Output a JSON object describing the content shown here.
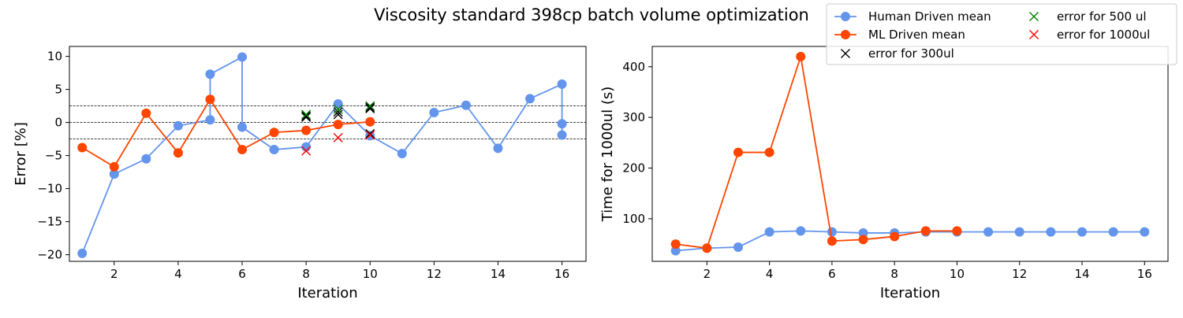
{
  "figure": {
    "title": "Viscosity standard 398cp batch volume optimization"
  },
  "legend": {
    "items": [
      {
        "label": "Human Driven mean",
        "kind": "line-marker",
        "color": "#6495ED"
      },
      {
        "label": "ML Driven mean",
        "kind": "line-marker",
        "color": "#FF4500"
      },
      {
        "label": "error for 300ul",
        "kind": "x-marker",
        "color": "#000000"
      },
      {
        "label": "error for 500 ul",
        "kind": "x-marker",
        "color": "#008000"
      },
      {
        "label": "error for 1000ul",
        "kind": "x-marker",
        "color": "#FF0000"
      }
    ]
  },
  "chart_data": [
    {
      "type": "line",
      "xlabel": "Iteration",
      "ylabel": "Error [%]",
      "xlim": [
        0.6,
        16.75
      ],
      "ylim": [
        -21.0,
        11.5
      ],
      "xticks": [
        2,
        4,
        6,
        8,
        10,
        12,
        14,
        16
      ],
      "yticks": [
        10,
        5,
        0,
        -5,
        -10,
        -15,
        -20
      ],
      "ytick_labels": [
        "10",
        "5",
        "0",
        "−5",
        "−10",
        "−15",
        "−20"
      ],
      "hlines": [
        {
          "y": 2.5,
          "style": "dashed",
          "color": "#000000"
        },
        {
          "y": 0,
          "style": "dashed",
          "color": "#000000"
        },
        {
          "y": -2.5,
          "style": "dashed",
          "color": "#000000"
        }
      ],
      "series": [
        {
          "name": "Human Driven mean",
          "color": "#6495ED",
          "marker": "circle",
          "x": [
            1,
            2,
            3,
            4,
            5,
            5,
            6,
            6,
            7,
            8,
            9,
            10,
            11,
            12,
            13,
            14,
            15,
            16,
            16,
            16
          ],
          "y": [
            -19.8,
            -7.8,
            -5.5,
            -0.5,
            0.4,
            7.3,
            9.9,
            -0.7,
            -4.1,
            -3.7,
            2.8,
            -2.0,
            -4.7,
            1.5,
            2.6,
            -3.9,
            3.6,
            5.8,
            -0.2,
            -1.9
          ]
        },
        {
          "name": "ML Driven mean",
          "color": "#FF4500",
          "marker": "circle",
          "x": [
            1,
            2,
            3,
            4,
            5,
            6,
            7,
            8,
            9,
            10
          ],
          "y": [
            -3.8,
            -6.7,
            1.4,
            -4.6,
            3.5,
            -4.1,
            -1.5,
            -1.2,
            -0.3,
            0.1
          ]
        },
        {
          "name": "error for 300ul",
          "color": "#000000",
          "marker": "x",
          "x": [
            8,
            8,
            9,
            9,
            10,
            10,
            10
          ],
          "y": [
            1.0,
            0.8,
            1.6,
            1.2,
            2.3,
            2.1,
            -1.7
          ]
        },
        {
          "name": "error for 500 ul",
          "color": "#008000",
          "marker": "x",
          "x": [
            8,
            9,
            10
          ],
          "y": [
            1.2,
            2.0,
            2.5
          ]
        },
        {
          "name": "error for 1000ul",
          "color": "#FF0000",
          "marker": "x",
          "x": [
            8,
            9,
            10
          ],
          "y": [
            -4.3,
            -2.3,
            -1.9
          ]
        }
      ]
    },
    {
      "type": "line",
      "xlabel": "Iteration",
      "ylabel": "Time for 1000ul (s)",
      "xlim": [
        0.25,
        16.75
      ],
      "ylim": [
        16,
        440
      ],
      "xticks": [
        2,
        4,
        6,
        8,
        10,
        12,
        14,
        16
      ],
      "yticks": [
        100,
        200,
        300,
        400
      ],
      "ytick_labels": [
        "100",
        "200",
        "300",
        "400"
      ],
      "hlines": [],
      "series": [
        {
          "name": "Human Driven mean",
          "color": "#6495ED",
          "marker": "circle",
          "x": [
            1,
            2,
            3,
            4,
            5,
            6,
            7,
            8,
            9,
            10,
            11,
            12,
            13,
            14,
            15,
            16
          ],
          "y": [
            37,
            42,
            44,
            74,
            76,
            74,
            72,
            72,
            74,
            74,
            74,
            74,
            74,
            74,
            74,
            74
          ]
        },
        {
          "name": "ML Driven mean",
          "color": "#FF4500",
          "marker": "circle",
          "x": [
            1,
            2,
            3,
            4,
            5,
            6,
            7,
            8,
            9,
            10
          ],
          "y": [
            50,
            42,
            231,
            231,
            420,
            56,
            59,
            65,
            76,
            76
          ]
        }
      ]
    }
  ]
}
